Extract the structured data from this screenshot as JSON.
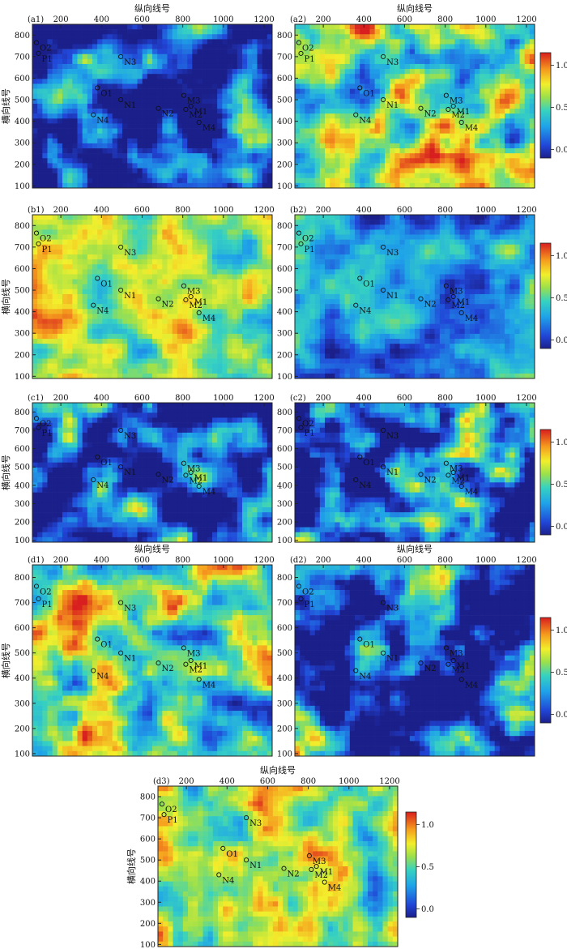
{
  "chart_data": {
    "type": "heatmap",
    "xlabel": "纵向线号",
    "ylabel": "横向线号",
    "x_ticks": [
      200,
      400,
      600,
      800,
      1000,
      1200
    ],
    "y_ticks": [
      100,
      200,
      300,
      400,
      500,
      600,
      700,
      800
    ],
    "xlim": [
      60,
      1240
    ],
    "ylim": [
      90,
      850
    ],
    "colorbar": {
      "range": [
        -0.1,
        1.15
      ],
      "ticks": [
        0.0,
        0.5,
        1.0
      ],
      "tick_labels": [
        "0.0",
        "0.5",
        "1.0"
      ],
      "colormap": "jet"
    },
    "wells": [
      {
        "name": "O2",
        "x": 80,
        "y": 765
      },
      {
        "name": "P1",
        "x": 90,
        "y": 715
      },
      {
        "name": "N3",
        "x": 495,
        "y": 700
      },
      {
        "name": "O1",
        "x": 380,
        "y": 555
      },
      {
        "name": "N1",
        "x": 495,
        "y": 500
      },
      {
        "name": "N2",
        "x": 680,
        "y": 460
      },
      {
        "name": "M3",
        "x": 805,
        "y": 520
      },
      {
        "name": "M1",
        "x": 840,
        "y": 470
      },
      {
        "name": "M2",
        "x": 815,
        "y": 455
      },
      {
        "name": "N4",
        "x": 360,
        "y": 430
      },
      {
        "name": "M4",
        "x": 880,
        "y": 395
      }
    ],
    "panels": [
      {
        "id": "a1",
        "label": "(a1)",
        "mean": 0.12,
        "contrast": 1.1,
        "x_title": true,
        "y_title": true,
        "colorbar": false
      },
      {
        "id": "a2",
        "label": "(a2)",
        "mean": 0.55,
        "contrast": 1.0,
        "x_title": true,
        "y_title": false,
        "colorbar": true
      },
      {
        "id": "b1",
        "label": "(b1)",
        "mean": 0.62,
        "contrast": 0.7,
        "x_title": false,
        "y_title": true,
        "colorbar": false
      },
      {
        "id": "b2",
        "label": "(b2)",
        "mean": 0.28,
        "contrast": 0.7,
        "x_title": false,
        "y_title": false,
        "colorbar": true
      },
      {
        "id": "c1",
        "label": "(c1)",
        "mean": 0.05,
        "contrast": 1.3,
        "x_title": false,
        "y_title": true,
        "colorbar": false
      },
      {
        "id": "c2",
        "label": "(c2)",
        "mean": 0.1,
        "contrast": 1.5,
        "x_title": false,
        "y_title": false,
        "colorbar": true
      },
      {
        "id": "d1",
        "label": "(d1)",
        "mean": 0.55,
        "contrast": 1.0,
        "x_title": true,
        "y_title": true,
        "colorbar": false
      },
      {
        "id": "d2",
        "label": "(d2)",
        "mean": 0.18,
        "contrast": 1.3,
        "x_title": true,
        "y_title": false,
        "colorbar": true
      },
      {
        "id": "d3",
        "label": "(d3)",
        "mean": 0.55,
        "contrast": 0.8,
        "x_title": true,
        "y_title": true,
        "colorbar": true
      }
    ]
  }
}
